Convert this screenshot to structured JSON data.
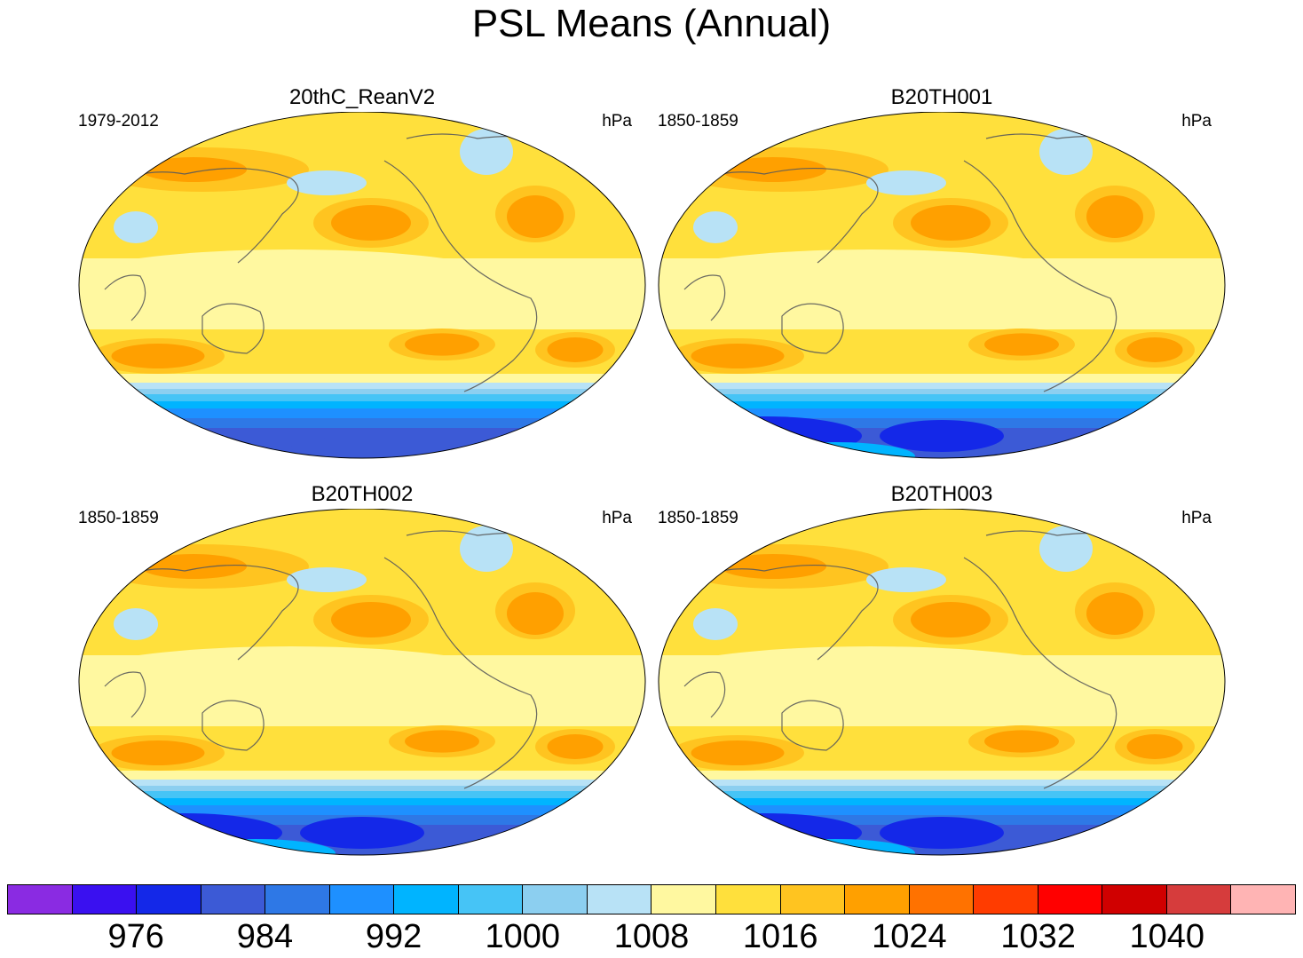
{
  "title": "PSL Means (Annual)",
  "panels": [
    {
      "title": "20thC_ReanV2",
      "period": "1979-2012",
      "units": "hPa",
      "variant": "obs"
    },
    {
      "title": "B20TH001",
      "period": "1850-1859",
      "units": "hPa",
      "variant": "model"
    },
    {
      "title": "B20TH002",
      "period": "1850-1859",
      "units": "hPa",
      "variant": "model"
    },
    {
      "title": "B20TH003",
      "period": "1850-1859",
      "units": "hPa",
      "variant": "model"
    }
  ],
  "colorbar": {
    "colors": [
      "#8a2be2",
      "#3a10f0",
      "#1428e8",
      "#3c5ad6",
      "#2e78e6",
      "#1e90ff",
      "#00b4ff",
      "#46c4f6",
      "#8ccff0",
      "#b8e2f6",
      "#fff8a0",
      "#ffe03c",
      "#ffc420",
      "#ffa000",
      "#ff7200",
      "#ff3c00",
      "#ff0000",
      "#d00000",
      "#d63c3c",
      "#ffb4b4"
    ],
    "labels": [
      "976",
      "984",
      "992",
      "1000",
      "1008",
      "1016",
      "1024",
      "1032",
      "1040"
    ]
  }
}
